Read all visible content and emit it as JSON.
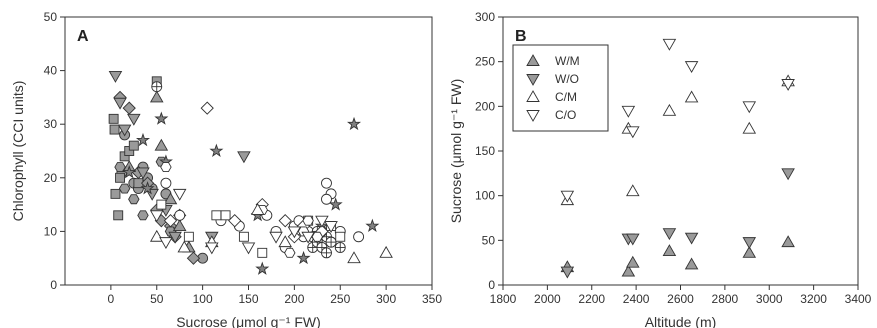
{
  "chart_data": [
    {
      "type": "scatter",
      "panel_label": "A",
      "xlabel": "Sucrose (μmol g⁻¹ FW)",
      "ylabel": "Chlorophyll (CCI units)",
      "xlim": [
        -50,
        350
      ],
      "ylim": [
        0,
        50
      ],
      "xticks": [
        0,
        50,
        100,
        150,
        200,
        250,
        300,
        350
      ],
      "yticks": [
        0,
        10,
        20,
        30,
        40,
        50
      ],
      "grid": false,
      "series": [
        {
          "marker": "circle",
          "fill": "#9a9a9a",
          "points": [
            [
              15,
              28
            ],
            [
              25,
              19
            ],
            [
              30,
              18
            ],
            [
              35,
              22
            ],
            [
              40,
              20
            ],
            [
              45,
              18
            ],
            [
              12,
              21
            ],
            [
              60,
              17
            ],
            [
              100,
              5
            ]
          ]
        },
        {
          "marker": "square",
          "fill": "#9a9a9a",
          "points": [
            [
              3,
              31
            ],
            [
              4,
              29
            ],
            [
              5,
              17
            ],
            [
              8,
              13
            ],
            [
              10,
              20
            ],
            [
              15,
              24
            ],
            [
              20,
              25
            ],
            [
              25,
              26
            ],
            [
              30,
              19
            ],
            [
              50,
              38
            ]
          ]
        },
        {
          "marker": "diamond",
          "fill": "#9a9a9a",
          "points": [
            [
              10,
              35
            ],
            [
              20,
              33
            ],
            [
              30,
              21
            ],
            [
              40,
              19
            ],
            [
              50,
              14
            ],
            [
              55,
              12
            ],
            [
              65,
              11
            ],
            [
              70,
              9
            ],
            [
              75,
              13
            ],
            [
              90,
              5
            ]
          ]
        },
        {
          "marker": "hexagon",
          "fill": "#9a9a9a",
          "points": [
            [
              10,
              22
            ],
            [
              15,
              18
            ],
            [
              25,
              16
            ],
            [
              35,
              13
            ],
            [
              55,
              23
            ],
            [
              65,
              10
            ]
          ]
        },
        {
          "marker": "triangle-up",
          "fill": "#9a9a9a",
          "points": [
            [
              50,
              35
            ],
            [
              55,
              26
            ],
            [
              65,
              16
            ],
            [
              75,
              11
            ],
            [
              85,
              7
            ],
            [
              20,
              22
            ]
          ]
        },
        {
          "marker": "triangle-down",
          "fill": "#9a9a9a",
          "points": [
            [
              5,
              39
            ],
            [
              10,
              34
            ],
            [
              15,
              29
            ],
            [
              25,
              31
            ],
            [
              35,
              21
            ],
            [
              45,
              17
            ],
            [
              60,
              14
            ],
            [
              70,
              9
            ],
            [
              110,
              9
            ],
            [
              145,
              24
            ]
          ]
        },
        {
          "marker": "star",
          "fill": "#808080",
          "points": [
            [
              20,
              21
            ],
            [
              35,
              27
            ],
            [
              40,
              18
            ],
            [
              55,
              31
            ],
            [
              60,
              23
            ],
            [
              115,
              25
            ],
            [
              160,
              13
            ],
            [
              165,
              3
            ],
            [
              210,
              5
            ],
            [
              230,
              11
            ],
            [
              245,
              15
            ],
            [
              265,
              30
            ],
            [
              285,
              11
            ]
          ]
        },
        {
          "marker": "circle",
          "fill": "#ffffff",
          "points": [
            [
              60,
              19
            ],
            [
              75,
              13
            ],
            [
              120,
              12
            ],
            [
              140,
              11
            ],
            [
              170,
              13
            ],
            [
              180,
              10
            ],
            [
              190,
              7
            ],
            [
              200,
              11
            ],
            [
              205,
              12
            ],
            [
              210,
              9
            ],
            [
              215,
              10
            ],
            [
              220,
              9
            ],
            [
              225,
              8
            ],
            [
              230,
              8
            ],
            [
              235,
              19
            ],
            [
              240,
              17
            ],
            [
              235,
              16
            ],
            [
              240,
              8
            ],
            [
              250,
              10
            ],
            [
              270,
              9
            ]
          ]
        },
        {
          "marker": "circle-cross",
          "fill": "#ffffff",
          "points": [
            [
              50,
              37
            ],
            [
              220,
              7
            ],
            [
              225,
              8
            ],
            [
              230,
              7
            ],
            [
              235,
              6
            ],
            [
              235,
              9
            ],
            [
              240,
              8
            ],
            [
              250,
              7
            ],
            [
              230,
              10
            ],
            [
              225,
              10
            ]
          ]
        },
        {
          "marker": "square",
          "fill": "#ffffff",
          "points": [
            [
              55,
              15
            ],
            [
              85,
              9
            ],
            [
              115,
              13
            ],
            [
              125,
              13
            ],
            [
              145,
              9
            ],
            [
              165,
              6
            ],
            [
              215,
              12
            ],
            [
              240,
              11
            ],
            [
              250,
              9
            ]
          ]
        },
        {
          "marker": "diamond",
          "fill": "#ffffff",
          "points": [
            [
              65,
              12
            ],
            [
              105,
              33
            ],
            [
              135,
              12
            ],
            [
              165,
              15
            ],
            [
              190,
              12
            ],
            [
              200,
              9
            ],
            [
              210,
              11
            ],
            [
              225,
              9
            ],
            [
              230,
              10
            ]
          ]
        },
        {
          "marker": "hexagon",
          "fill": "#ffffff",
          "points": [
            [
              60,
              22
            ],
            [
              165,
              14
            ],
            [
              195,
              6
            ],
            [
              210,
              10
            ],
            [
              215,
              12
            ],
            [
              225,
              9
            ]
          ]
        },
        {
          "marker": "triangle-up",
          "fill": "#ffffff",
          "points": [
            [
              50,
              9
            ],
            [
              80,
              7
            ],
            [
              110,
              8
            ],
            [
              160,
              14
            ],
            [
              190,
              8
            ],
            [
              265,
              5
            ],
            [
              300,
              6
            ]
          ]
        },
        {
          "marker": "triangle-down",
          "fill": "#ffffff",
          "points": [
            [
              50,
              13
            ],
            [
              60,
              8
            ],
            [
              75,
              17
            ],
            [
              110,
              7
            ],
            [
              150,
              7
            ],
            [
              180,
              9
            ],
            [
              200,
              10
            ],
            [
              215,
              9
            ],
            [
              230,
              12
            ],
            [
              240,
              11
            ]
          ]
        }
      ]
    },
    {
      "type": "scatter",
      "panel_label": "B",
      "xlabel": "Altitude (m)",
      "ylabel": "Sucrose (μmol g⁻¹ FW)",
      "xlim": [
        1800,
        3400
      ],
      "ylim": [
        0,
        300
      ],
      "xticks": [
        1800,
        2000,
        2200,
        2400,
        2600,
        2800,
        3000,
        3200,
        3400
      ],
      "yticks": [
        0,
        50,
        100,
        150,
        200,
        250,
        300
      ],
      "grid": false,
      "legend": {
        "placement": "top-left",
        "entries": [
          {
            "label": "W/M",
            "marker": "triangle-up",
            "fill": "#9a9a9a"
          },
          {
            "label": "W/O",
            "marker": "triangle-down",
            "fill": "#9a9a9a"
          },
          {
            "label": "C/M",
            "marker": "triangle-up",
            "fill": "#ffffff"
          },
          {
            "label": "C/O",
            "marker": "triangle-down",
            "fill": "#ffffff"
          }
        ]
      },
      "series": [
        {
          "name": "W/M",
          "marker": "triangle-up",
          "fill": "#9a9a9a",
          "x": [
            2090,
            2365,
            2385,
            2550,
            2650,
            2910,
            3085
          ],
          "y": [
            20,
            15,
            25,
            38,
            23,
            36,
            48
          ]
        },
        {
          "name": "W/O",
          "marker": "triangle-down",
          "fill": "#9a9a9a",
          "x": [
            2090,
            2365,
            2385,
            2550,
            2650,
            2910,
            3085
          ],
          "y": [
            15,
            52,
            52,
            58,
            53,
            48,
            125
          ]
        },
        {
          "name": "C/M",
          "marker": "triangle-up",
          "fill": "#ffffff",
          "x": [
            2090,
            2365,
            2385,
            2550,
            2650,
            2910,
            3085
          ],
          "y": [
            95,
            175,
            105,
            195,
            210,
            175,
            228
          ]
        },
        {
          "name": "C/O",
          "marker": "triangle-down",
          "fill": "#ffffff",
          "x": [
            2090,
            2365,
            2385,
            2550,
            2650,
            2910,
            3085
          ],
          "y": [
            100,
            195,
            172,
            270,
            245,
            200,
            225
          ]
        }
      ]
    }
  ]
}
